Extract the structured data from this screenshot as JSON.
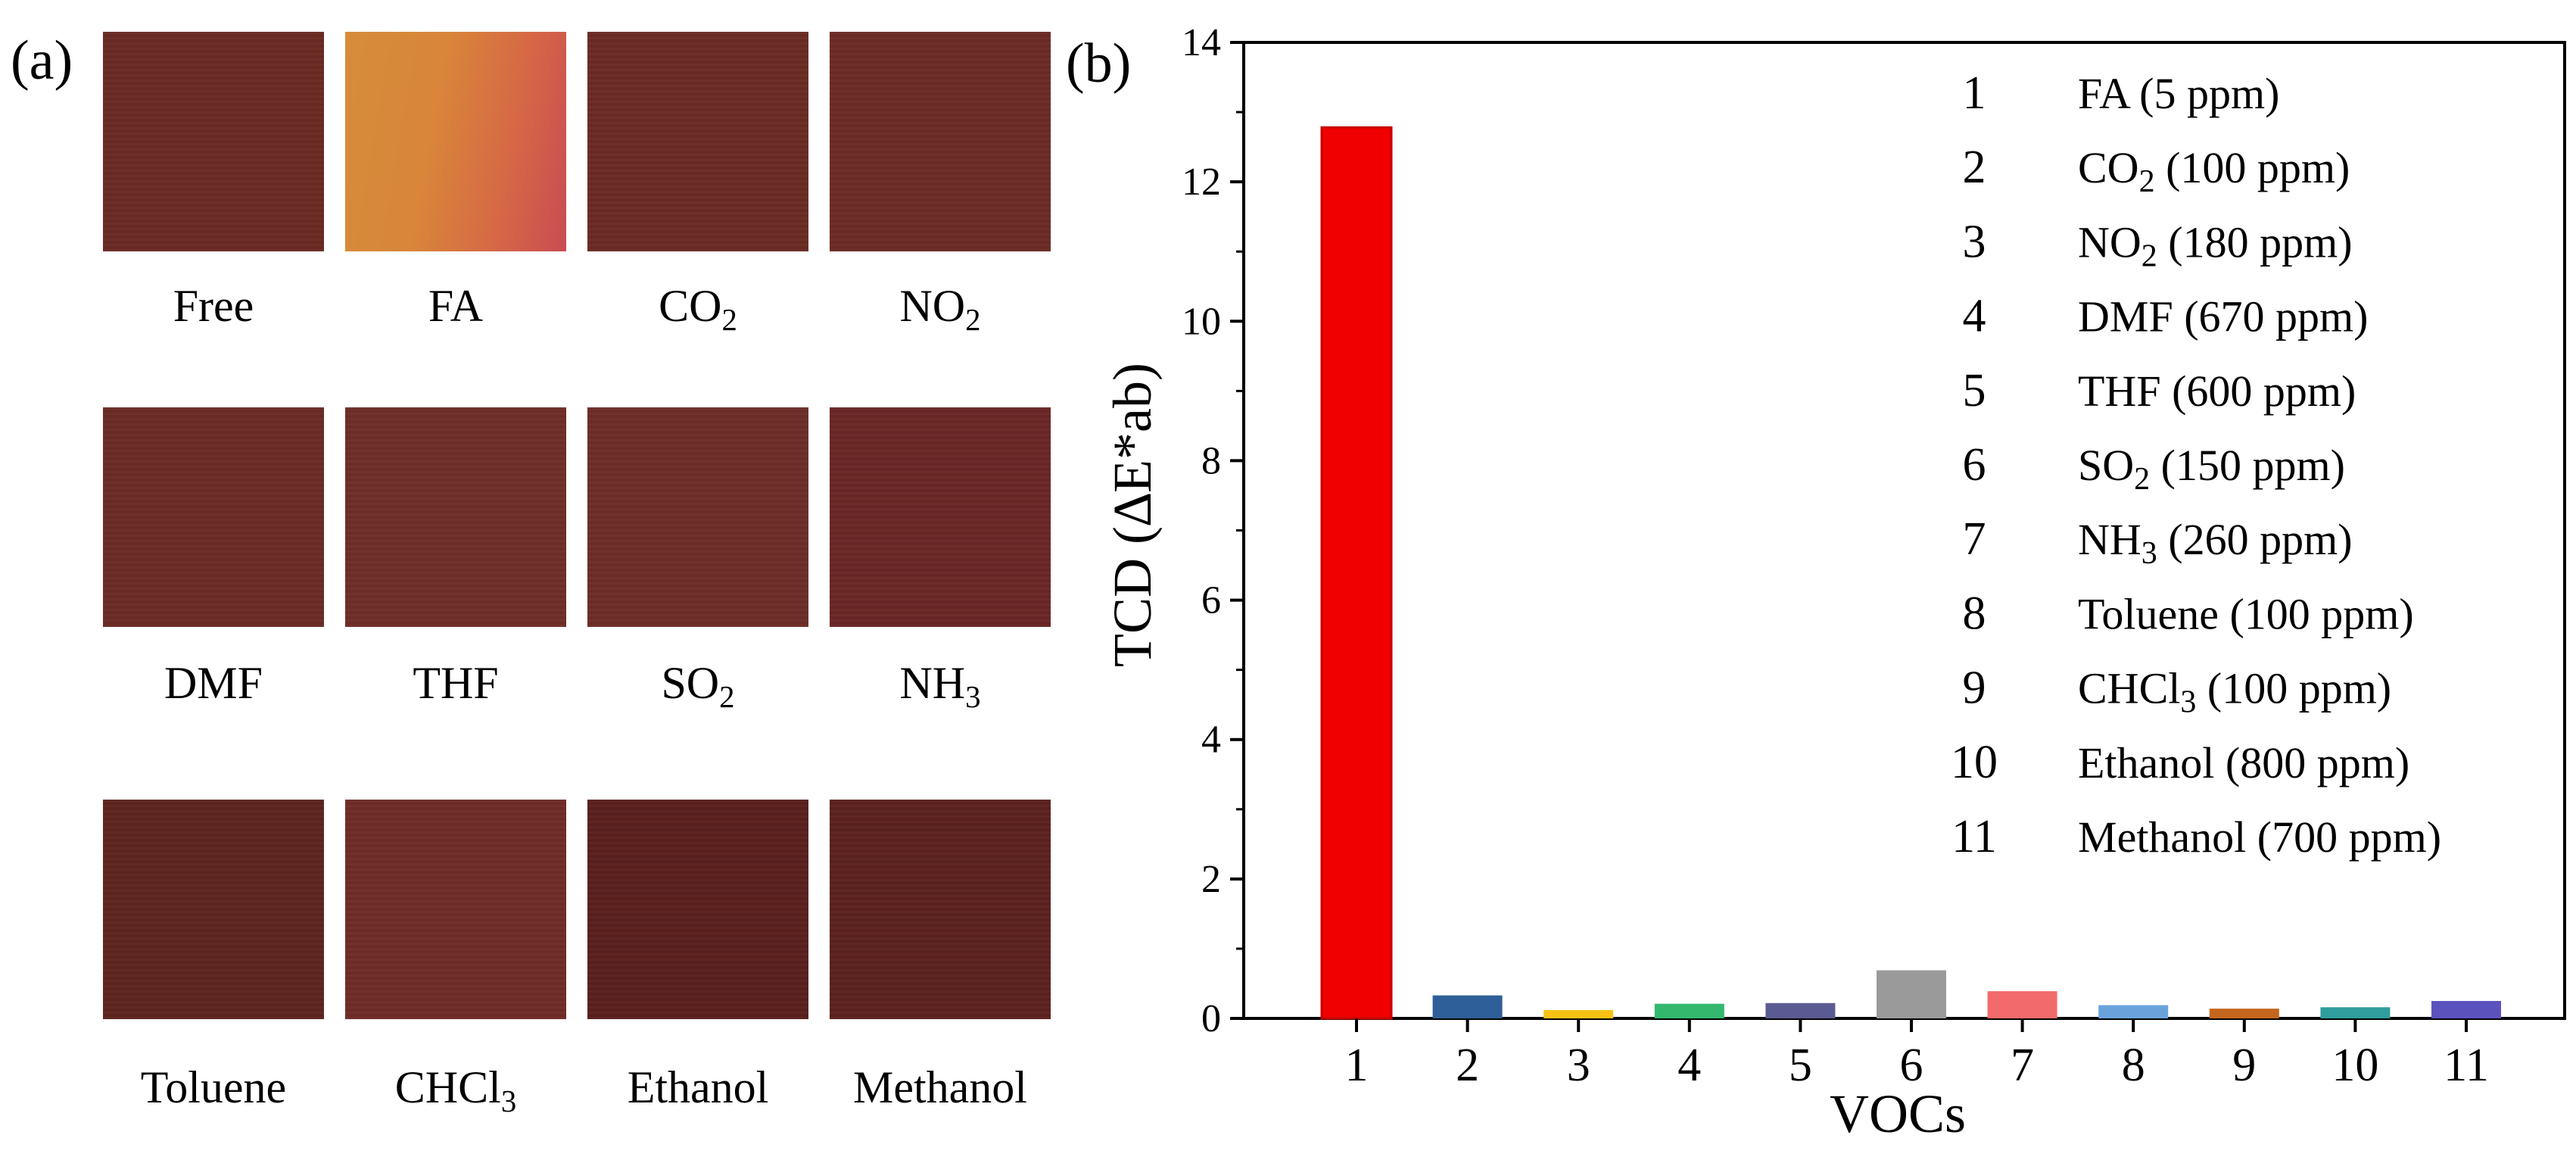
{
  "panel_a": {
    "label": "(a)",
    "swatches": [
      {
        "label": "Free",
        "sub": "",
        "color": "#6b2a23",
        "tone": "dark"
      },
      {
        "label": "FA",
        "sub": "",
        "color": "#d17a3e",
        "tone": "bright"
      },
      {
        "label": "CO",
        "sub": "2",
        "color": "#6a2b23",
        "tone": "dark"
      },
      {
        "label": "NO",
        "sub": "2",
        "color": "#6c2b25",
        "tone": "dark"
      },
      {
        "label": "DMF",
        "sub": "",
        "color": "#6b2b25",
        "tone": "dark"
      },
      {
        "label": "THF",
        "sub": "",
        "color": "#6e2e26",
        "tone": "dark"
      },
      {
        "label": "SO",
        "sub": "2",
        "color": "#6d2d27",
        "tone": "dark"
      },
      {
        "label": "NH",
        "sub": "3",
        "color": "#6a2726",
        "tone": "dark"
      },
      {
        "label": "Toluene",
        "sub": "",
        "color": "#5e2520",
        "tone": "dark"
      },
      {
        "label": "CHCl",
        "sub": "3",
        "color": "#6f2d26",
        "tone": "dark"
      },
      {
        "label": "Ethanol",
        "sub": "",
        "color": "#5a201e",
        "tone": "dark"
      },
      {
        "label": "Methanol",
        "sub": "",
        "color": "#5c221f",
        "tone": "dark"
      }
    ]
  },
  "chart_data": {
    "type": "bar",
    "panel_label": "(b)",
    "xlabel": "VOCs",
    "ylabel": "TCD (∆E*ab)",
    "ylim": [
      0,
      14
    ],
    "yticks": [
      0,
      2,
      4,
      6,
      8,
      10,
      12,
      14
    ],
    "categories": [
      "1",
      "2",
      "3",
      "4",
      "5",
      "6",
      "7",
      "8",
      "9",
      "10",
      "11"
    ],
    "values": [
      12.78,
      0.33,
      0.12,
      0.21,
      0.22,
      0.69,
      0.39,
      0.19,
      0.14,
      0.16,
      0.25
    ],
    "colors": [
      "#f00000",
      "#2f5f98",
      "#f6c315",
      "#33b86e",
      "#5b5b93",
      "#9a9a9a",
      "#f36a6a",
      "#6aa3dc",
      "#c4661e",
      "#2f9e9c",
      "#5b52bd"
    ],
    "legend": [
      {
        "num": "1",
        "label": "FA (5 ppm)",
        "sub": "",
        "after": ""
      },
      {
        "num": "2",
        "label": "CO",
        "sub": "2",
        "after": " (100 ppm)"
      },
      {
        "num": "3",
        "label": "NO",
        "sub": "2",
        "after": " (180 ppm)"
      },
      {
        "num": "4",
        "label": "DMF (670 ppm)",
        "sub": "",
        "after": ""
      },
      {
        "num": "5",
        "label": "THF (600 ppm)",
        "sub": "",
        "after": ""
      },
      {
        "num": "6",
        "label": "SO",
        "sub": "2",
        "after": " (150 ppm)"
      },
      {
        "num": "7",
        "label": "NH",
        "sub": "3",
        "after": " (260 ppm)"
      },
      {
        "num": "8",
        "label": "Toluene (100 ppm)",
        "sub": "",
        "after": ""
      },
      {
        "num": "9",
        "label": "CHCl",
        "sub": "3",
        "after": " (100 ppm)"
      },
      {
        "num": "10",
        "label": "Ethanol (800 ppm)",
        "sub": "",
        "after": ""
      },
      {
        "num": "11",
        "label": "Methanol (700 ppm)",
        "sub": "",
        "after": ""
      }
    ]
  }
}
